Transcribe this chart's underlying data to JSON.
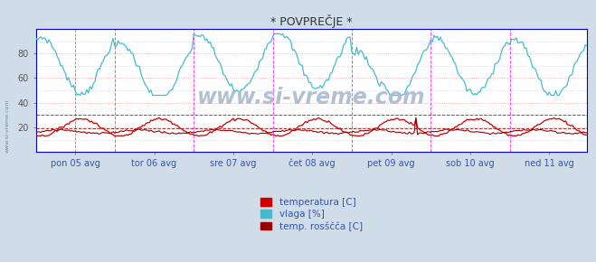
{
  "title": "* POVPREČJE *",
  "title_color": "#333333",
  "bg_color": "#d0dce8",
  "plot_bg_color": "#ffffff",
  "x_labels": [
    "pon 05 avg",
    "tor 06 avg",
    "sre 07 avg",
    "čet 08 avg",
    "pet 09 avg",
    "sob 10 avg",
    "ned 11 avg"
  ],
  "y_ticks": [
    20,
    40,
    60,
    80
  ],
  "ylim": [
    0,
    100
  ],
  "temp_color": "#cc0000",
  "vlaga_color": "#44bbcc",
  "rosisce_color": "#990000",
  "temp_avg_line": 30,
  "dew_avg_line": 19,
  "watermark": "www.si-vreme.com",
  "watermark_color": "#aabbcc",
  "legend_temp": "temperatura [C]",
  "legend_vlaga": "vlaga [%]",
  "legend_rosisce": "temp. rosščča [C]",
  "n_points": 336,
  "border_color": "#0000cc",
  "spine_bottom_color": "#0000cc",
  "vline_color": "#ff44ff",
  "hgrid_major_color": "#ff9999",
  "hgrid_minor_color": "#bbccee",
  "left_label": "www.si-vreme.com"
}
